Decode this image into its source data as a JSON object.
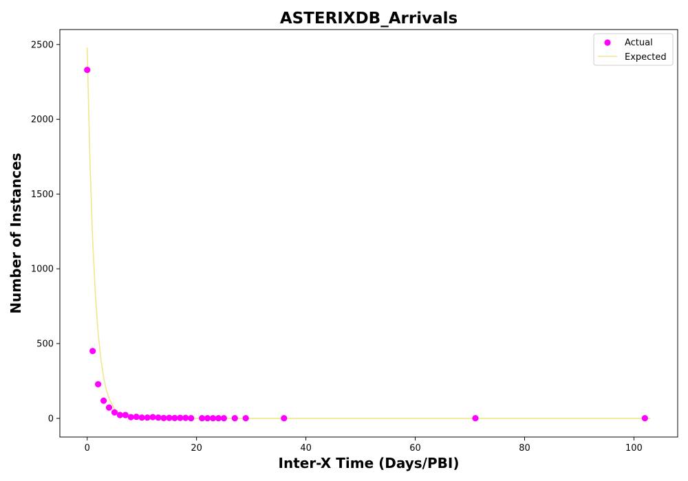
{
  "chart_data": {
    "type": "scatter",
    "title": "ASTERIXDB_Arrivals",
    "xlabel": "Inter-X Time (Days/PBI)",
    "ylabel": "Number of Instances",
    "xlim": [
      -5,
      108
    ],
    "ylim": [
      -125,
      2600
    ],
    "xticks": [
      0,
      20,
      40,
      60,
      80,
      100
    ],
    "yticks": [
      0,
      500,
      1000,
      1500,
      2000,
      2500
    ],
    "grid": false,
    "legend_position": "top-right",
    "series": [
      {
        "name": "Actual",
        "kind": "scatter",
        "color": "#ff00ff",
        "x": [
          0,
          1,
          2,
          3,
          4,
          5,
          6,
          7,
          8,
          9,
          10,
          11,
          12,
          13,
          14,
          15,
          16,
          17,
          18,
          19,
          21,
          22,
          23,
          24,
          25,
          27,
          29,
          36,
          71,
          102
        ],
        "y": [
          2330,
          450,
          228,
          118,
          72,
          40,
          22,
          22,
          8,
          10,
          5,
          5,
          8,
          5,
          2,
          3,
          2,
          3,
          3,
          1,
          1,
          1,
          1,
          1,
          1,
          1,
          1,
          1,
          1,
          1
        ]
      },
      {
        "name": "Expected",
        "kind": "line",
        "color": "#f0e68c",
        "x": [
          0,
          0.5,
          1,
          1.5,
          2,
          2.5,
          3,
          3.5,
          4,
          5,
          6,
          7,
          8,
          9,
          10,
          12,
          15,
          20,
          30,
          50,
          80,
          103
        ],
        "y": [
          2480,
          1720,
          1190,
          825,
          572,
          396,
          274,
          190,
          132,
          63,
          30,
          14.5,
          7,
          3.4,
          1.6,
          0.4,
          0.05,
          0,
          0,
          0,
          0,
          0
        ]
      }
    ]
  }
}
